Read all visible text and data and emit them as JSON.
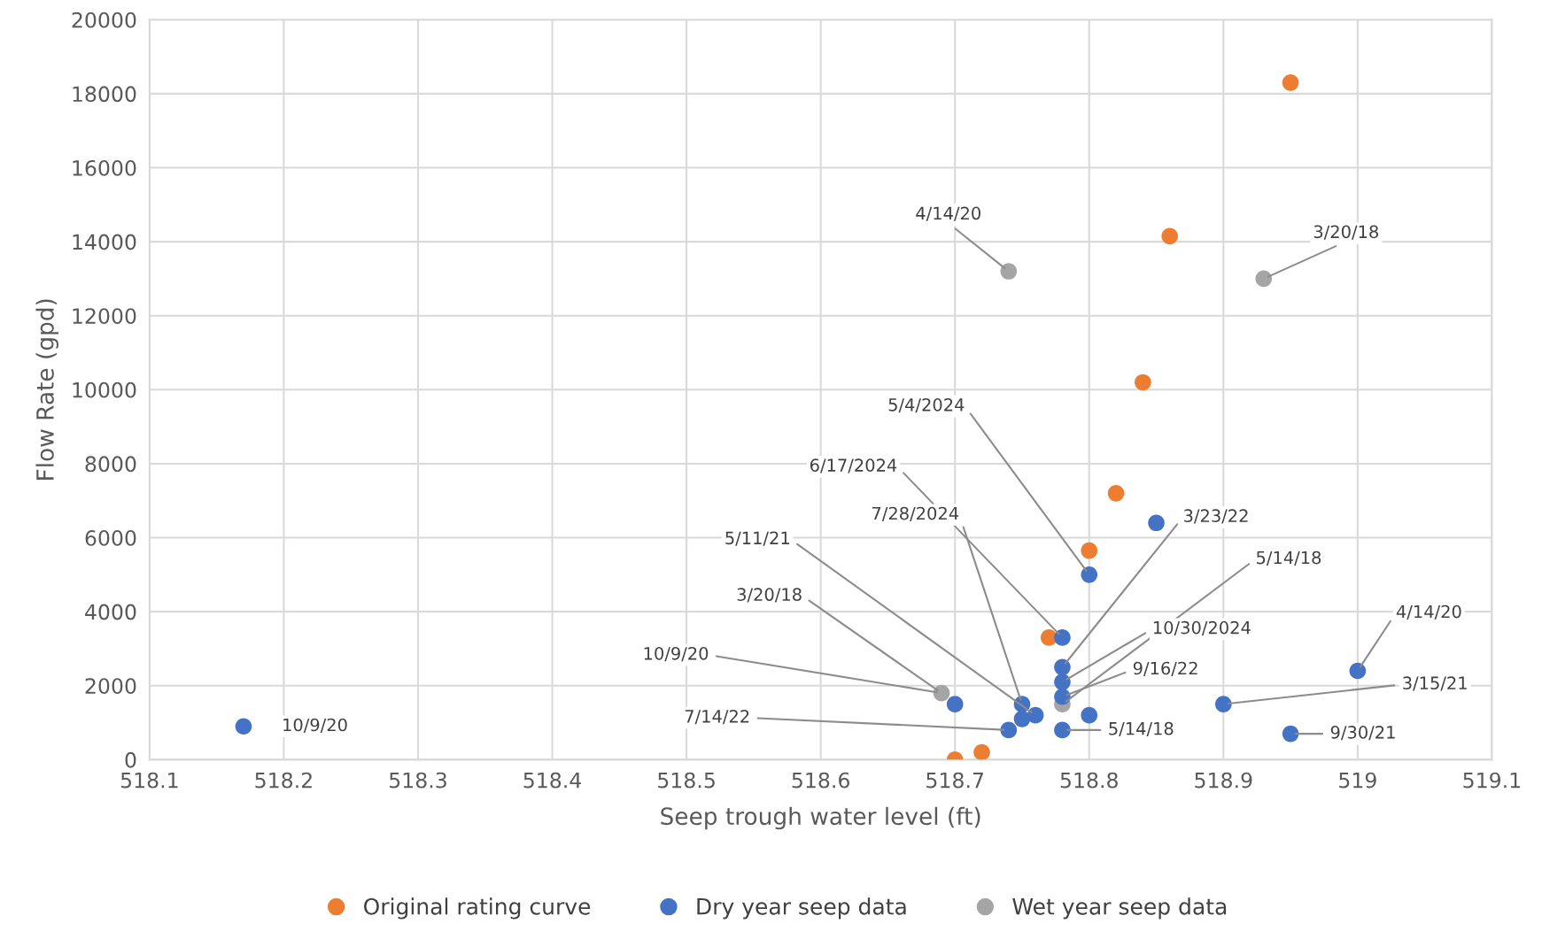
{
  "chart_data": {
    "type": "scatter",
    "xlabel": "Seep trough water level (ft)",
    "ylabel": "Flow Rate (gpd)",
    "xlim": [
      518.1,
      519.1
    ],
    "xticks": [
      518.1,
      518.2,
      518.3,
      518.4,
      518.5,
      518.6,
      518.7,
      518.8,
      518.9,
      519,
      519.1
    ],
    "ylim": [
      0,
      20000
    ],
    "yticks": [
      0,
      2000,
      4000,
      6000,
      8000,
      10000,
      12000,
      14000,
      16000,
      18000,
      20000
    ],
    "grid": true,
    "legend": "bottom",
    "marker": "circle",
    "series": [
      {
        "name": "Original rating curve",
        "color": "#ed7d31",
        "x": [
          518.95,
          518.86,
          518.84,
          518.82,
          518.8,
          518.77,
          518.72,
          518.7
        ],
        "values": [
          18300,
          14150,
          10200,
          7200,
          5650,
          3300,
          200,
          0
        ]
      },
      {
        "name": "Dry year seep data",
        "color": "#4472c4",
        "x": [
          518.17,
          518.7,
          518.74,
          518.75,
          518.75,
          518.76,
          518.78,
          518.78,
          518.78,
          518.78,
          518.78,
          518.8,
          518.8,
          518.85,
          518.9,
          518.95,
          519.0
        ],
        "values": [
          900,
          1500,
          800,
          1500,
          1100,
          1200,
          3300,
          2500,
          2100,
          1700,
          800,
          5000,
          1200,
          6400,
          1500,
          700,
          2400
        ]
      },
      {
        "name": "Wet year seep data",
        "color": "#a5a5a5",
        "x": [
          518.74,
          518.93,
          518.69,
          518.78
        ],
        "values": [
          13200,
          13000,
          1800,
          1500
        ]
      }
    ],
    "annotations": [
      {
        "text": "10/9/20",
        "x": 518.17,
        "y": 900
      },
      {
        "text": "4/14/20",
        "x": 518.74,
        "y": 13200
      },
      {
        "text": "3/20/18",
        "x": 518.93,
        "y": 13000
      },
      {
        "text": "5/4/2024",
        "x": 518.8,
        "y": 5000
      },
      {
        "text": "6/17/2024",
        "x": 518.78,
        "y": 3300
      },
      {
        "text": "7/28/2024",
        "x": 518.75,
        "y": 1500
      },
      {
        "text": "5/11/21",
        "x": 518.76,
        "y": 1200
      },
      {
        "text": "3/20/18",
        "x": 518.69,
        "y": 1800
      },
      {
        "text": "10/9/20",
        "x": 518.69,
        "y": 1800
      },
      {
        "text": "7/14/22",
        "x": 518.74,
        "y": 800
      },
      {
        "text": "3/23/22",
        "x": 518.78,
        "y": 2500
      },
      {
        "text": "5/14/18",
        "x": 518.78,
        "y": 1500
      },
      {
        "text": "10/30/2024",
        "x": 518.78,
        "y": 2100
      },
      {
        "text": "9/16/22",
        "x": 518.78,
        "y": 1700
      },
      {
        "text": "5/14/18",
        "x": 518.78,
        "y": 800
      },
      {
        "text": "4/14/20",
        "x": 519.0,
        "y": 2400
      },
      {
        "text": "3/15/21",
        "x": 518.9,
        "y": 1500
      },
      {
        "text": "9/30/21",
        "x": 518.95,
        "y": 700
      }
    ]
  }
}
